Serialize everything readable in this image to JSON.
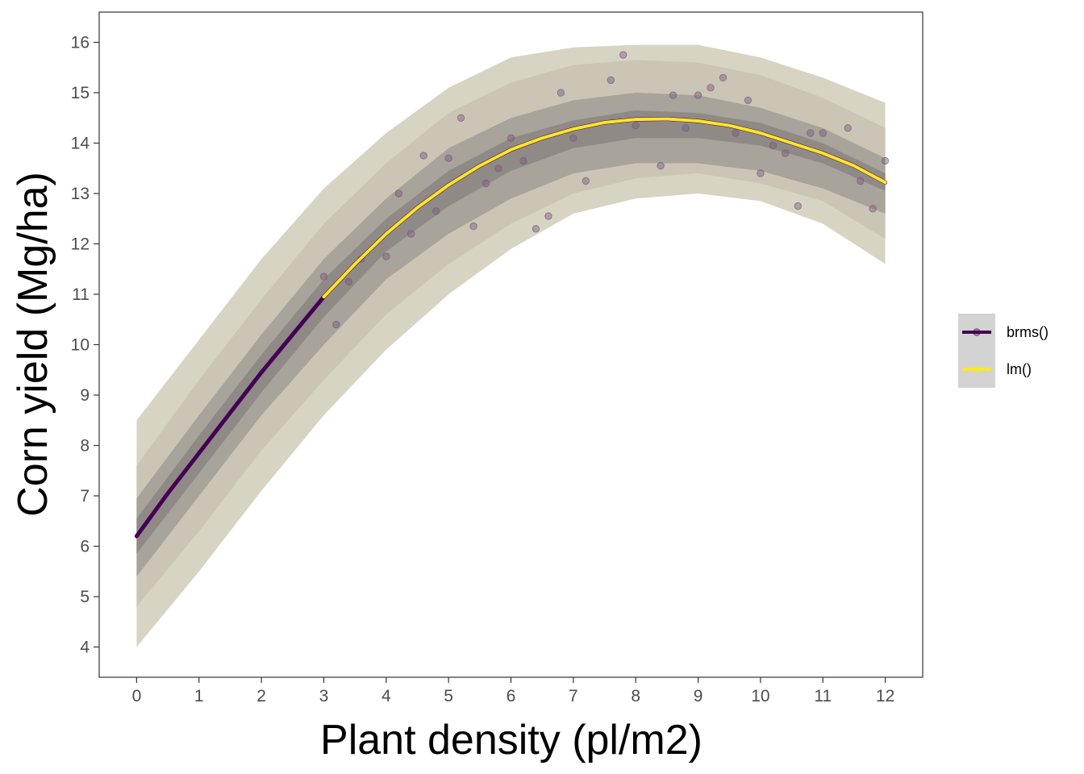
{
  "chart_data": {
    "type": "line",
    "xlabel": "Plant density (pl/m2)",
    "ylabel": "Corn yield (Mg/ha)",
    "xlim": [
      -0.6,
      12.6
    ],
    "ylim": [
      3.4,
      16.6
    ],
    "x_ticks": [
      0,
      1,
      2,
      3,
      4,
      5,
      6,
      7,
      8,
      9,
      10,
      11,
      12
    ],
    "y_ticks": [
      4,
      5,
      6,
      7,
      8,
      9,
      10,
      11,
      12,
      13,
      14,
      15,
      16
    ],
    "grid": false,
    "legend_position": "right",
    "series": [
      {
        "name": "brms()",
        "color": "#440154",
        "x": [
          0,
          0.5,
          1,
          1.5,
          2,
          2.5,
          3,
          3.5,
          4,
          4.5,
          5,
          5.5,
          6,
          6.5,
          7,
          7.5,
          8,
          8.5,
          9,
          9.5,
          10,
          10.5,
          11,
          11.5,
          12
        ],
        "y": [
          6.2,
          7.05,
          7.85,
          8.65,
          9.45,
          10.2,
          10.95,
          11.6,
          12.2,
          12.72,
          13.17,
          13.55,
          13.87,
          14.1,
          14.28,
          14.41,
          14.47,
          14.48,
          14.44,
          14.35,
          14.2,
          14.0,
          13.8,
          13.55,
          13.22
        ]
      },
      {
        "name": "lm()",
        "color": "#FDE725",
        "x": [
          3,
          3.5,
          4,
          4.5,
          5,
          5.5,
          6,
          6.5,
          7,
          7.5,
          8,
          8.5,
          9,
          9.5,
          10,
          10.5,
          11,
          11.5,
          12
        ],
        "y": [
          10.95,
          11.6,
          12.2,
          12.72,
          13.17,
          13.55,
          13.87,
          14.1,
          14.28,
          14.41,
          14.47,
          14.48,
          14.44,
          14.35,
          14.2,
          14.0,
          13.8,
          13.55,
          13.22
        ]
      }
    ],
    "bands": [
      {
        "color": "#d8d4c4",
        "x": [
          0,
          1,
          2,
          3,
          4,
          5,
          6,
          7,
          8,
          9,
          10,
          11,
          12
        ],
        "lower": [
          4.0,
          5.5,
          7.1,
          8.6,
          9.9,
          11.0,
          11.9,
          12.6,
          12.9,
          13.0,
          12.85,
          12.4,
          11.6
        ],
        "upper": [
          8.5,
          10.1,
          11.7,
          13.1,
          14.2,
          15.1,
          15.7,
          15.9,
          15.95,
          15.95,
          15.7,
          15.3,
          14.8
        ]
      },
      {
        "color": "#cac5b4",
        "x": [
          0,
          1,
          2,
          3,
          4,
          5,
          6,
          7,
          8,
          9,
          10,
          11,
          12
        ],
        "lower": [
          4.8,
          6.3,
          7.9,
          9.3,
          10.6,
          11.6,
          12.4,
          13.0,
          13.3,
          13.4,
          13.2,
          12.85,
          12.1
        ],
        "upper": [
          7.6,
          9.3,
          10.9,
          12.4,
          13.6,
          14.6,
          15.2,
          15.55,
          15.65,
          15.6,
          15.35,
          14.9,
          14.3
        ]
      },
      {
        "color": "#a8a39b",
        "x": [
          0,
          1,
          2,
          3,
          4,
          5,
          6,
          7,
          8,
          9,
          10,
          11,
          12
        ],
        "lower": [
          5.4,
          7.0,
          8.6,
          10.0,
          11.3,
          12.2,
          12.9,
          13.4,
          13.6,
          13.6,
          13.45,
          13.1,
          12.6
        ],
        "upper": [
          6.95,
          8.6,
          10.2,
          11.7,
          12.9,
          13.9,
          14.5,
          14.85,
          15.0,
          14.95,
          14.7,
          14.3,
          13.7
        ]
      },
      {
        "color": "#8f8a86",
        "x": [
          0,
          1,
          2,
          3,
          4,
          5,
          6,
          7,
          8,
          9,
          10,
          11,
          12
        ],
        "lower": [
          5.85,
          7.45,
          9.05,
          10.55,
          11.85,
          12.75,
          13.45,
          13.9,
          14.1,
          14.1,
          13.95,
          13.6,
          13.05
        ],
        "upper": [
          6.55,
          8.2,
          9.8,
          11.3,
          12.5,
          13.45,
          14.1,
          14.45,
          14.65,
          14.6,
          14.4,
          14.0,
          13.4
        ]
      }
    ],
    "points": {
      "color": "#7b5a7e",
      "x": [
        3.0,
        3.2,
        3.4,
        3.6,
        4.0,
        4.2,
        4.4,
        4.6,
        4.8,
        5.0,
        5.2,
        5.4,
        5.6,
        5.8,
        6.0,
        6.2,
        6.4,
        6.6,
        6.8,
        7.0,
        7.2,
        7.6,
        7.8,
        8.0,
        8.4,
        8.6,
        8.8,
        9.0,
        9.2,
        9.4,
        9.6,
        9.8,
        10.0,
        10.2,
        10.4,
        10.6,
        10.8,
        11.0,
        11.4,
        11.6,
        11.8,
        12.0
      ],
      "y": [
        11.35,
        10.4,
        11.25,
        11.7,
        11.75,
        13.0,
        12.2,
        13.75,
        12.65,
        13.7,
        14.5,
        12.35,
        13.2,
        13.5,
        14.1,
        13.65,
        12.3,
        12.55,
        15.0,
        14.1,
        13.25,
        15.25,
        15.75,
        14.35,
        13.55,
        14.95,
        14.3,
        14.95,
        15.1,
        15.3,
        14.2,
        14.85,
        13.4,
        13.95,
        13.8,
        12.75,
        14.2,
        14.2,
        14.3,
        13.25,
        12.7,
        13.65
      ]
    }
  }
}
